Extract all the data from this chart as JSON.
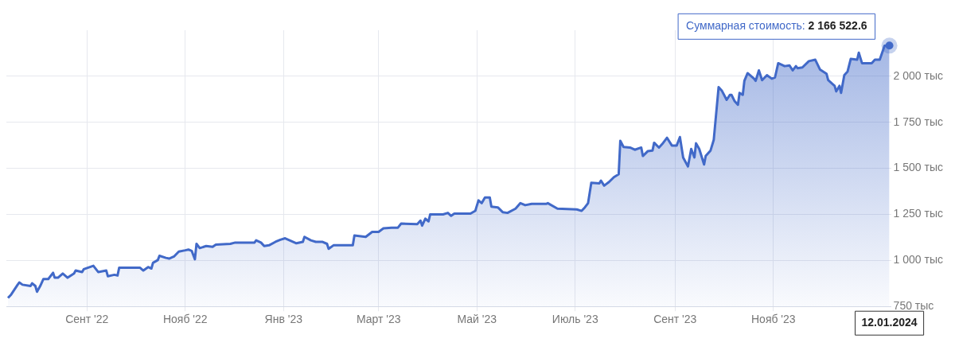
{
  "chart_data": {
    "type": "area",
    "color": "#4169c8",
    "x": [
      "2022-07-14",
      "2022-07-16",
      "2022-07-20",
      "2022-07-21",
      "2022-07-23",
      "2022-07-28",
      "2022-07-29",
      "2022-07-31",
      "2022-08-01",
      "2022-08-03",
      "2022-08-05",
      "2022-08-08",
      "2022-08-11",
      "2022-08-12",
      "2022-08-14",
      "2022-08-17",
      "2022-08-20",
      "2022-08-24",
      "2022-08-25",
      "2022-08-29",
      "2022-08-30",
      "2022-09-05",
      "2022-09-08",
      "2022-09-13",
      "2022-09-14",
      "2022-09-18",
      "2022-09-20",
      "2022-09-21",
      "2022-10-04",
      "2022-10-06",
      "2022-10-09",
      "2022-10-11",
      "2022-10-12",
      "2022-10-15",
      "2022-10-16",
      "2022-10-20",
      "2022-10-22",
      "2022-10-25",
      "2022-10-28",
      "2022-11-01",
      "2022-11-03",
      "2022-11-05",
      "2022-11-07",
      "2022-11-08",
      "2022-11-10",
      "2022-11-14",
      "2022-11-18",
      "2022-11-20",
      "2022-11-29",
      "2022-12-02",
      "2022-12-14",
      "2022-12-15",
      "2022-12-18",
      "2022-12-20",
      "2022-12-23",
      "2022-12-27",
      "2022-12-30",
      "2023-01-02",
      "2023-01-09",
      "2023-01-13",
      "2023-01-14",
      "2023-01-18",
      "2023-01-21",
      "2023-01-25",
      "2023-01-28",
      "2023-01-29",
      "2023-02-01",
      "2023-02-13",
      "2023-02-14",
      "2023-02-21",
      "2023-02-25",
      "2023-03-01",
      "2023-03-04",
      "2023-03-09",
      "2023-03-13",
      "2023-03-15",
      "2023-03-25",
      "2023-03-27",
      "2023-03-28",
      "2023-03-30",
      "2023-04-01",
      "2023-04-02",
      "2023-04-10",
      "2023-04-13",
      "2023-04-15",
      "2023-04-17",
      "2023-04-27",
      "2023-04-30",
      "2023-05-02",
      "2023-05-04",
      "2023-05-06",
      "2023-05-09",
      "2023-05-10",
      "2023-05-14",
      "2023-05-17",
      "2023-05-20",
      "2023-05-25",
      "2023-05-28",
      "2023-05-31",
      "2023-06-04",
      "2023-06-13",
      "2023-06-14",
      "2023-06-20",
      "2023-07-02",
      "2023-07-05",
      "2023-07-07",
      "2023-07-09",
      "2023-07-11",
      "2023-07-16",
      "2023-07-17",
      "2023-07-19",
      "2023-07-22",
      "2023-07-25",
      "2023-07-28",
      "2023-07-29",
      "2023-07-31",
      "2023-08-04",
      "2023-08-07",
      "2023-08-11",
      "2023-08-12",
      "2023-08-15",
      "2023-08-18",
      "2023-08-19",
      "2023-08-22",
      "2023-08-24",
      "2023-08-27",
      "2023-08-30",
      "2023-09-02",
      "2023-09-04",
      "2023-09-06",
      "2023-09-09",
      "2023-09-11",
      "2023-09-13",
      "2023-09-14",
      "2023-09-16",
      "2023-09-19",
      "2023-09-20",
      "2023-09-23",
      "2023-09-25",
      "2023-09-28",
      "2023-09-30",
      "2023-10-03",
      "2023-10-05",
      "2023-10-06",
      "2023-10-08",
      "2023-10-10",
      "2023-10-11",
      "2023-10-13",
      "2023-10-14",
      "2023-10-16",
      "2023-10-20",
      "2023-10-21",
      "2023-10-23",
      "2023-10-25",
      "2023-10-28",
      "2023-10-31",
      "2023-11-02",
      "2023-11-04",
      "2023-11-08",
      "2023-11-11",
      "2023-11-13",
      "2023-11-15",
      "2023-11-16",
      "2023-11-19",
      "2023-11-23",
      "2023-11-27",
      "2023-11-30",
      "2023-12-04",
      "2023-12-05",
      "2023-12-08",
      "2023-12-09",
      "2023-12-10",
      "2023-12-12",
      "2023-12-13",
      "2023-12-15",
      "2023-12-17",
      "2023-12-19",
      "2023-12-23",
      "2023-12-24",
      "2023-12-26",
      "2024-01-01",
      "2024-01-03",
      "2024-01-06",
      "2024-01-09",
      "2024-01-12"
    ],
    "values": [
      796,
      815,
      868,
      880,
      868,
      861,
      876,
      861,
      830,
      861,
      899,
      899,
      933,
      906,
      906,
      929,
      906,
      929,
      945,
      937,
      952,
      971,
      937,
      945,
      914,
      922,
      918,
      960,
      960,
      945,
      964,
      956,
      987,
      1002,
      1025,
      1014,
      1010,
      1021,
      1048,
      1055,
      1059,
      1052,
      1006,
      1090,
      1067,
      1078,
      1074,
      1086,
      1090,
      1097,
      1097,
      1109,
      1097,
      1078,
      1082,
      1101,
      1112,
      1120,
      1093,
      1101,
      1128,
      1109,
      1101,
      1101,
      1090,
      1063,
      1082,
      1082,
      1135,
      1128,
      1155,
      1155,
      1174,
      1178,
      1178,
      1200,
      1197,
      1216,
      1189,
      1227,
      1212,
      1250,
      1250,
      1258,
      1242,
      1254,
      1254,
      1269,
      1326,
      1311,
      1342,
      1342,
      1292,
      1288,
      1262,
      1258,
      1281,
      1311,
      1300,
      1307,
      1307,
      1311,
      1281,
      1277,
      1269,
      1288,
      1311,
      1422,
      1418,
      1433,
      1406,
      1426,
      1452,
      1468,
      1650,
      1616,
      1613,
      1601,
      1613,
      1567,
      1593,
      1597,
      1639,
      1613,
      1632,
      1666,
      1624,
      1624,
      1670,
      1559,
      1510,
      1605,
      1559,
      1636,
      1605,
      1521,
      1567,
      1597,
      1655,
      1941,
      1922,
      1872,
      1899,
      1899,
      1864,
      1845,
      1910,
      1899,
      1975,
      2017,
      1987,
      1975,
      2032,
      1979,
      2006,
      1987,
      1994,
      2071,
      2055,
      2059,
      2032,
      2055,
      2044,
      2048,
      2082,
      2090,
      2036,
      2013,
      1979,
      1956,
      1948,
      1918,
      1948,
      1910,
      2006,
      2025,
      2094,
      2090,
      2128,
      2071,
      2071,
      2090,
      2090,
      2166,
      2166.5
    ],
    "xlim": [
      "2022-07-13",
      "2024-01-13"
    ],
    "xticks": [
      {
        "value": "2022-09-01",
        "label": "Сент '22"
      },
      {
        "value": "2022-11-01",
        "label": "Нояб '22"
      },
      {
        "value": "2023-01-01",
        "label": "Янв '23"
      },
      {
        "value": "2023-03-01",
        "label": "Март '23"
      },
      {
        "value": "2023-05-01",
        "label": "Май '23"
      },
      {
        "value": "2023-07-01",
        "label": "Июль '23"
      },
      {
        "value": "2023-09-01",
        "label": "Сент '23"
      },
      {
        "value": "2023-11-01",
        "label": "Нояб '23"
      }
    ],
    "ylim": [
      750,
      2250
    ],
    "yticks": [
      {
        "value": 750,
        "label": "750 тыс"
      },
      {
        "value": 1000,
        "label": "1 000 тыс"
      },
      {
        "value": 1250,
        "label": "1 250 тыс"
      },
      {
        "value": 1500,
        "label": "1 500 тыс"
      },
      {
        "value": 1750,
        "label": "1 750 тыс"
      },
      {
        "value": 2000,
        "label": "2 000 тыс"
      }
    ],
    "grid": true,
    "annotations": [
      {
        "text": "Суммарная стоимость: 2 166 522.6",
        "x": "2024-01-12",
        "y": 2166.5
      },
      "12.01.2024"
    ]
  }
}
